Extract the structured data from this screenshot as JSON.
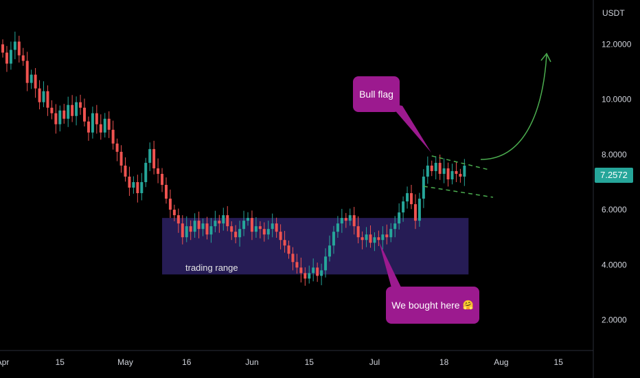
{
  "colors": {
    "background": "#000000",
    "up": "#26a69a",
    "down": "#ef5350",
    "range_box": "#2a1f5e",
    "callout": "#9c1a8f",
    "flag_lines": "#4caf50",
    "arrow": "#4caf50",
    "price_badge": "#26a69a"
  },
  "annotations": {
    "unit": "USDT",
    "current_price": "7.2572",
    "bull_flag": "Bull flag",
    "bought": "We bought here",
    "bought_icon": "hug-face-emoji",
    "trading_range": "trading range"
  },
  "chart_data": {
    "type": "candlestick",
    "x_axis": {
      "tick_labels": [
        "Apr",
        "15",
        "May",
        "16",
        "Jun",
        "15",
        "Jul",
        "18",
        "Aug",
        "15"
      ],
      "tick_days": [
        0,
        14,
        30,
        45,
        61,
        75,
        91,
        108,
        122,
        136
      ]
    },
    "y_axis": {
      "tick_labels": [
        "12.0000",
        "10.0000",
        "8.0000",
        "6.0000",
        "4.0000",
        "2.0000"
      ],
      "tick_values": [
        12,
        10,
        8,
        6,
        4,
        2
      ],
      "range": [
        1,
        13.2
      ]
    },
    "trading_range_box": {
      "day_start": 39,
      "day_end": 114,
      "price_low": 3.65,
      "price_high": 5.7
    },
    "flag": {
      "upper": {
        "day_start": 105,
        "price_start": 7.95,
        "day_end": 119,
        "price_end": 7.45
      },
      "lower": {
        "day_start": 103,
        "price_start": 6.85,
        "day_end": 120,
        "price_end": 6.45
      }
    },
    "closes": [
      11.7,
      11.3,
      11.8,
      12.1,
      11.6,
      11.4,
      10.6,
      10.9,
      10.4,
      9.9,
      10.3,
      9.7,
      9.5,
      9.1,
      9.6,
      9.3,
      9.8,
      9.4,
      9.9,
      9.7,
      9.2,
      8.8,
      9.5,
      9.1,
      8.8,
      9.3,
      8.9,
      8.4,
      8.1,
      7.6,
      7.2,
      6.8,
      7.0,
      6.6,
      7.0,
      7.7,
      8.2,
      7.5,
      7.3,
      6.9,
      6.4,
      6.0,
      5.8,
      5.5,
      5.0,
      5.4,
      5.2,
      5.6,
      5.3,
      5.5,
      5.1,
      5.4,
      5.6,
      5.5,
      5.8,
      5.4,
      5.2,
      5.0,
      5.3,
      5.6,
      5.7,
      5.2,
      5.4,
      5.3,
      5.1,
      5.3,
      5.5,
      5.2,
      4.9,
      4.7,
      4.4,
      4.1,
      3.9,
      3.7,
      3.5,
      3.7,
      3.9,
      3.6,
      3.8,
      4.3,
      4.7,
      5.2,
      5.5,
      5.7,
      5.6,
      5.8,
      5.4,
      5.0,
      4.9,
      5.1,
      4.8,
      5.0,
      4.9,
      5.1,
      5.0,
      5.3,
      5.5,
      5.9,
      6.3,
      6.6,
      6.2,
      5.6,
      6.4,
      7.2,
      7.6,
      7.4,
      7.7,
      7.3,
      7.5,
      7.1,
      7.4,
      7.3,
      7.2,
      7.6
    ]
  }
}
